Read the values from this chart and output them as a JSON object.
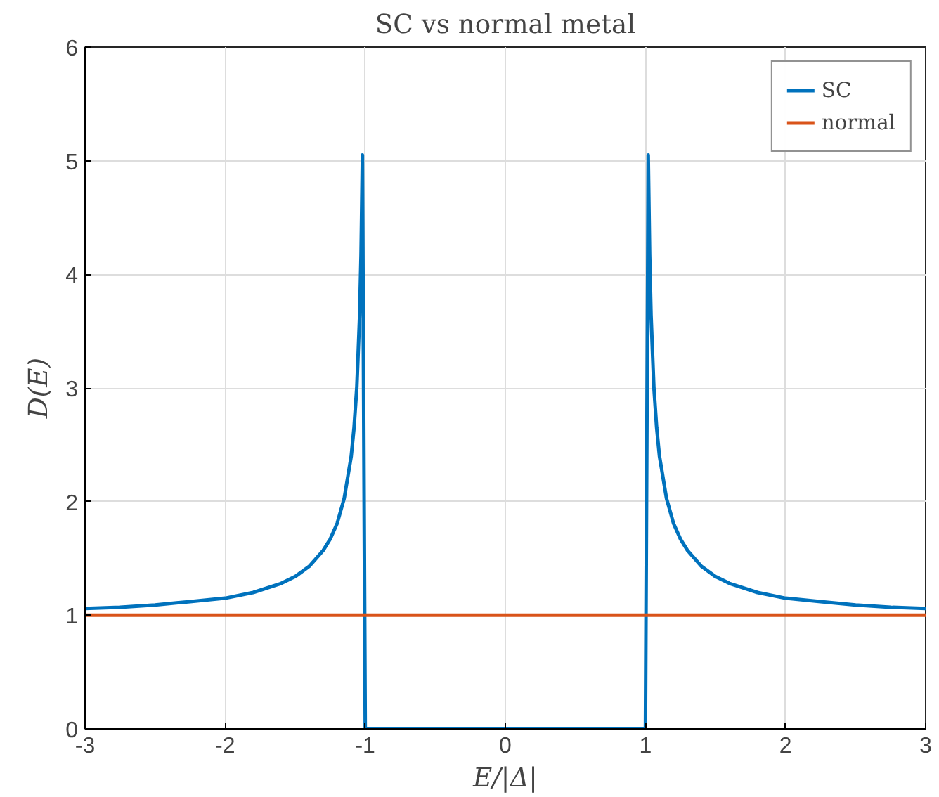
{
  "chart_data": {
    "type": "line",
    "title": "SC vs normal metal",
    "xlabel": "E/|Δ|",
    "ylabel": "D(E)",
    "xlim": [
      -3,
      3
    ],
    "ylim": [
      0,
      6
    ],
    "xticks": [
      -3,
      -2,
      -1,
      0,
      1,
      2,
      3
    ],
    "yticks": [
      0,
      1,
      2,
      3,
      4,
      5,
      6
    ],
    "grid": true,
    "legend": "top right",
    "marker": "none",
    "line_style": "solid",
    "series": [
      {
        "name": "SC",
        "color": "#0072bd",
        "x": [
          -3,
          -2.75,
          -2.5,
          -2.25,
          -2,
          -1.8,
          -1.6,
          -1.5,
          -1.4,
          -1.3,
          -1.25,
          -1.2,
          -1.15,
          -1.1,
          -1.08,
          -1.06,
          -1.04,
          -1.03,
          -1.02,
          -1.0,
          1.0,
          1.02,
          1.03,
          1.04,
          1.06,
          1.08,
          1.1,
          1.15,
          1.2,
          1.25,
          1.3,
          1.4,
          1.5,
          1.6,
          1.8,
          2,
          2.25,
          2.5,
          2.75,
          3
        ],
        "values": [
          1.06,
          1.07,
          1.09,
          1.12,
          1.15,
          1.2,
          1.28,
          1.34,
          1.43,
          1.57,
          1.67,
          1.81,
          2.03,
          2.4,
          2.65,
          3.01,
          3.64,
          4.17,
          5.05,
          0,
          0,
          5.05,
          4.17,
          3.64,
          3.01,
          2.65,
          2.4,
          2.03,
          1.81,
          1.67,
          1.57,
          1.43,
          1.34,
          1.28,
          1.2,
          1.15,
          1.12,
          1.09,
          1.07,
          1.06
        ]
      },
      {
        "name": "normal",
        "color": "#d95319",
        "x": [
          -3,
          3
        ],
        "values": [
          1,
          1
        ]
      }
    ]
  }
}
